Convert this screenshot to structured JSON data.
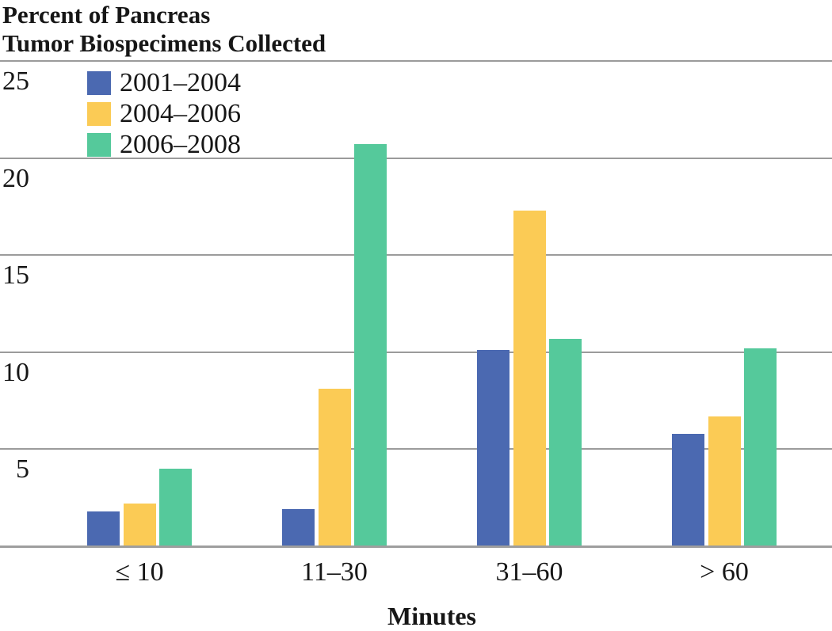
{
  "title": {
    "line1": "Percent of Pancreas",
    "line2": "Tumor Biospecimens Collected"
  },
  "axes": {
    "x_title": "Minutes",
    "y_tick_labels": [
      "25",
      "20",
      "15",
      "10",
      "5"
    ]
  },
  "legend": {
    "items": [
      {
        "label": "2001–2004",
        "color": "#4B69B1"
      },
      {
        "label": "2004–2006",
        "color": "#FBCB55"
      },
      {
        "label": "2006–2008",
        "color": "#55C99B"
      }
    ]
  },
  "colors": {
    "gridline": "#9B9B9B",
    "text": "#161616",
    "background": "#FFFFFF"
  },
  "chart_data": {
    "type": "bar",
    "title": "Percent of Pancreas Tumor Biospecimens Collected",
    "categories": [
      "≤ 10",
      "11–30",
      "31–60",
      "> 60"
    ],
    "series": [
      {
        "name": "2001–2004",
        "color": "#4B69B1",
        "values": [
          1.8,
          1.9,
          10.1,
          5.8
        ]
      },
      {
        "name": "2004–2006",
        "color": "#FBCB55",
        "values": [
          2.2,
          8.1,
          17.3,
          6.7
        ]
      },
      {
        "name": "2006–2008",
        "color": "#55C99B",
        "values": [
          4.0,
          20.7,
          10.7,
          10.2
        ]
      }
    ],
    "xlabel": "Minutes",
    "ylabel": "Percent of Pancreas Tumor Biospecimens Collected",
    "ylim": [
      0,
      25
    ],
    "yticks": [
      25,
      20,
      15,
      10,
      5
    ],
    "grid": true,
    "legend_position": "top-left"
  }
}
